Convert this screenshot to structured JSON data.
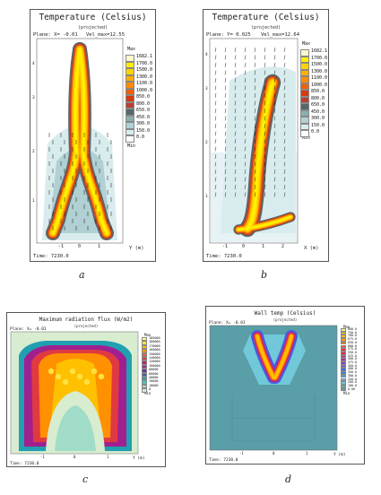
{
  "captions": [
    "a",
    "b",
    "c",
    "d"
  ],
  "panel_a": {
    "title": "Temperature (Celsius)",
    "subtitle": "(projected)",
    "plane": "Plane: X= -0.01",
    "vel": "Vel_max=12.55",
    "time": "Time: 7230.0",
    "xaxis_label": "Y (m)",
    "legend_max": "Max",
    "legend_min": "Min"
  },
  "panel_b": {
    "title": "Temperature (Celsius)",
    "subtitle": "(projected)",
    "plane": "Plane: Y= 0.025",
    "vel": "Vel_max=12.64",
    "time": "Time: 7230.0",
    "xaxis_label": "X (m)",
    "legend_max": "Max",
    "legend_min": "Min"
  },
  "panel_c": {
    "title": "Maximum radiation flux (W/m2)",
    "subtitle": "(projected)",
    "plane": "Plane: X= -0.01",
    "time": "Time: 7230.0",
    "xaxis_label": "Y (m)",
    "legend_max": "Max",
    "legend_min": "Min"
  },
  "panel_d": {
    "title": "Wall temp (Celsius)",
    "subtitle": "(projected)",
    "plane": "Plane: X= -0.01",
    "time": "Time: 7230.0",
    "xaxis_label": "Y (m)",
    "legend_max": "Max",
    "legend_min": "Min"
  },
  "chart_data": [
    {
      "type": "heatmap",
      "title": "Temperature (Celsius)",
      "subtitle": "(projected)",
      "xlabel": "Y (m)",
      "x_ticks": [
        "-1",
        "0",
        "1"
      ],
      "y_ticks": [
        "4",
        "3",
        "2",
        "1"
      ],
      "legend_entries": [
        "1682.1",
        "1700.0",
        "1500.0",
        "1300.0",
        "1100.0",
        "1000.0",
        "850.0",
        "800.0",
        "650.0",
        "450.0",
        "300.0",
        "150.0",
        "0.0"
      ],
      "legend_colors": [
        "#fff9d0",
        "#fff000",
        "#ffd400",
        "#ffb000",
        "#ff8c00",
        "#f06000",
        "#d83a10",
        "#b84030",
        "#586868",
        "#8ab0b0",
        "#b0d0d4",
        "#d8ecee",
        "#ffffff"
      ]
    },
    {
      "type": "heatmap",
      "title": "Temperature (Celsius)",
      "subtitle": "(projected)",
      "xlabel": "X (m)",
      "x_ticks": [
        "-1",
        "0",
        "1",
        "2"
      ],
      "y_ticks": [
        "4",
        "3",
        "2",
        "1"
      ],
      "legend_entries": [
        "1682.1",
        "1700.0",
        "1500.0",
        "1300.0",
        "1100.0",
        "1000.0",
        "850.0",
        "800.0",
        "650.0",
        "450.0",
        "300.0",
        "150.0",
        "0.0"
      ],
      "legend_colors": [
        "#fff9d0",
        "#fff000",
        "#ffd400",
        "#ffb000",
        "#ff8c00",
        "#f06000",
        "#d83a10",
        "#b84030",
        "#586868",
        "#8ab0b0",
        "#b0d0d4",
        "#d8ecee",
        "#ffffff"
      ]
    },
    {
      "type": "heatmap",
      "title": "Maximum radiation flux (W/m2)",
      "subtitle": "(projected)",
      "xlabel": "Y (m)",
      "x_ticks": [
        "-1",
        "0",
        "1"
      ],
      "legend_entries": [
        "185000",
        "180000",
        "170000",
        "160000",
        "150000",
        "140000",
        "120000",
        "100000",
        "80000",
        "60000",
        "40000",
        "20000",
        "10000",
        "0"
      ],
      "legend_colors": [
        "#ffff80",
        "#ffe040",
        "#ffc000",
        "#ff9000",
        "#f06020",
        "#e03a40",
        "#c0206a",
        "#a02090",
        "#7030a0",
        "#3a5ab0",
        "#20a0b0",
        "#40c8b8",
        "#a0dcc8",
        "#d8ecd0"
      ]
    },
    {
      "type": "heatmap",
      "title": "Wall temp (Celsius)",
      "subtitle": "(projected)",
      "xlabel": "Y (m)",
      "x_ticks": [
        "-1",
        "0",
        "1"
      ],
      "legend_entries": [
        "800.0",
        "750.0",
        "700.0",
        "675.0",
        "650.0",
        "600.0",
        "575.0",
        "550.0",
        "525.0",
        "500.0",
        "475.0",
        "450.0",
        "400.0",
        "350.0",
        "300.0",
        "250.0",
        "200.0",
        "100.0",
        "0.00"
      ],
      "legend_colors": [
        "#fff080",
        "#ffe000",
        "#ffc000",
        "#ffa000",
        "#ff8000",
        "#ff5020",
        "#f03030",
        "#e02050",
        "#c02080",
        "#a030a0",
        "#8040c0",
        "#6050d0",
        "#4060e0",
        "#4080e0",
        "#50a0e0",
        "#60b8e0",
        "#70c8d8",
        "#5aa8b8",
        "#5a9ea8"
      ]
    }
  ]
}
